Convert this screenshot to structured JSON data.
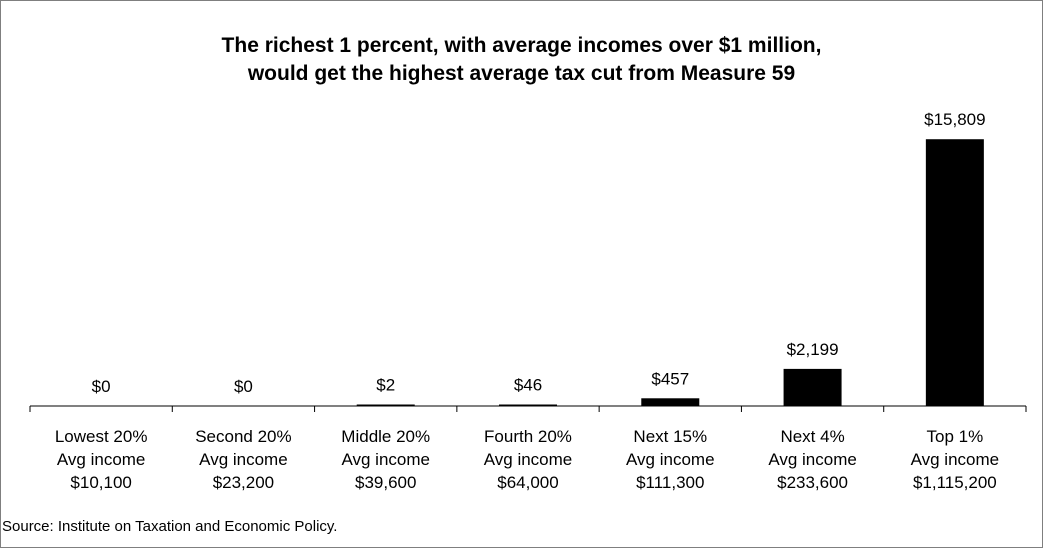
{
  "chart_data": {
    "type": "bar",
    "title_lines": [
      "The richest 1 percent, with average incomes over $1 million,",
      "would get the highest average tax cut from Measure 59"
    ],
    "categories": [
      [
        "Lowest 20%",
        "Avg income",
        "$10,100"
      ],
      [
        "Second 20%",
        "Avg income",
        "$23,200"
      ],
      [
        "Middle 20%",
        "Avg income",
        "$39,600"
      ],
      [
        "Fourth 20%",
        "Avg income",
        "$64,000"
      ],
      [
        "Next 15%",
        "Avg income",
        "$111,300"
      ],
      [
        "Next 4%",
        "Avg income",
        "$233,600"
      ],
      [
        "Top 1%",
        "Avg income",
        "$1,115,200"
      ]
    ],
    "values": [
      0,
      0,
      2,
      46,
      457,
      2199,
      15809
    ],
    "data_labels": [
      "$0",
      "$0",
      "$2",
      "$46",
      "$457",
      "$2,199",
      "$15,809"
    ],
    "ylim": [
      0,
      16000
    ],
    "grid": false,
    "bar_color": "#000000",
    "source": "Source: Institute on Taxation and Economic Policy."
  }
}
